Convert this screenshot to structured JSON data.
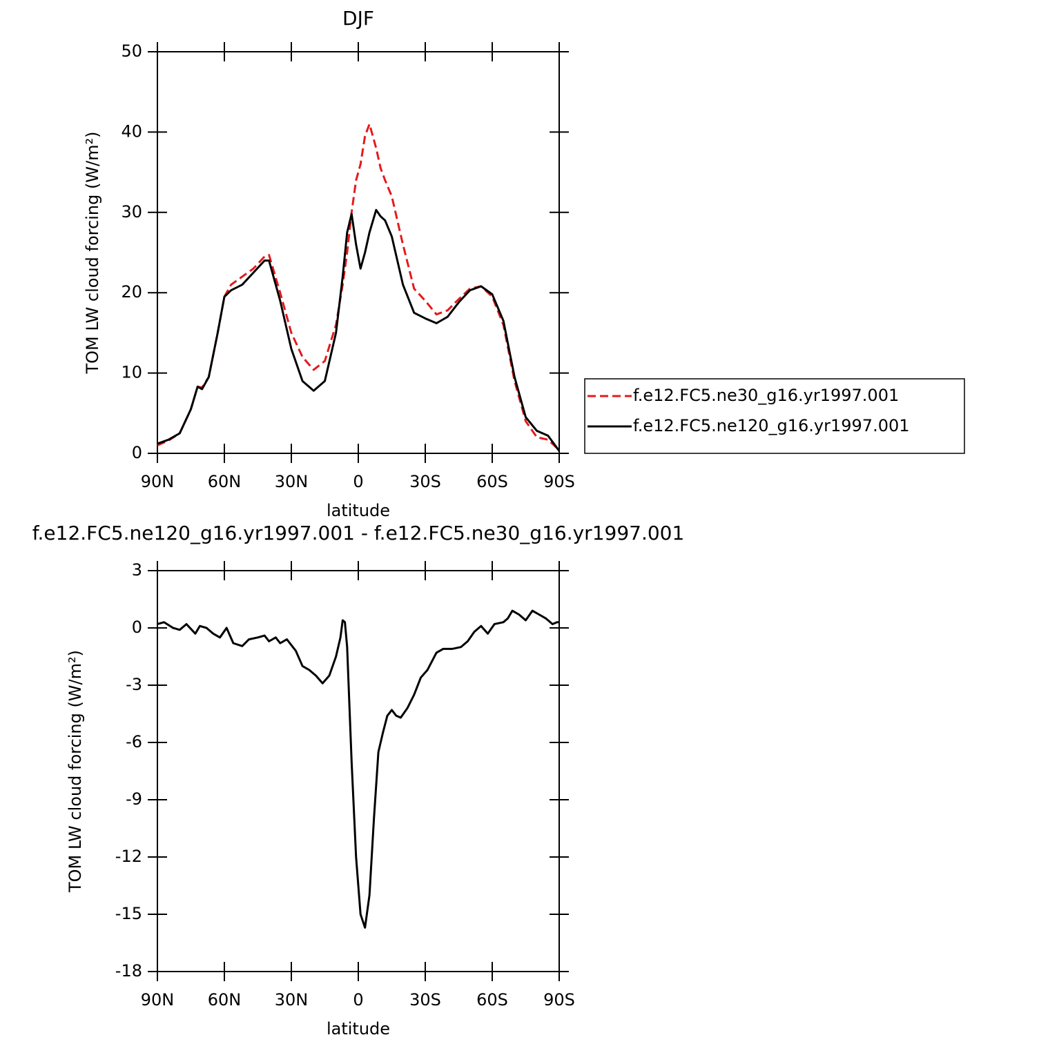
{
  "chart_data": [
    {
      "type": "line",
      "title": "DJF",
      "xlabel": "latitude",
      "ylabel": "TOM LW cloud forcing (W/m²)",
      "x": [
        90,
        85,
        80,
        75,
        72,
        70,
        67,
        63,
        60,
        57,
        52,
        47,
        42,
        40,
        35,
        30,
        25,
        20,
        15,
        10,
        7,
        5,
        3,
        1,
        -1,
        -3,
        -5,
        -8,
        -10,
        -12,
        -15,
        -20,
        -25,
        -30,
        -35,
        -40,
        -45,
        -50,
        -55,
        -60,
        -65,
        -70,
        -75,
        -80,
        -85,
        -90
      ],
      "series": [
        {
          "name": "f.e12.FC5.ne30_g16.yr1997.001",
          "color": "#e41a1c",
          "style": "dashed",
          "values": [
            1.0,
            1.6,
            2.5,
            5.5,
            8.3,
            8.2,
            9.5,
            15,
            19.5,
            21,
            22,
            23,
            24.5,
            24.7,
            20,
            15,
            12,
            10.4,
            11.5,
            16,
            21,
            25,
            30,
            34,
            36,
            39.5,
            41,
            38,
            35.5,
            34,
            32,
            26,
            20.5,
            19,
            17.3,
            17.8,
            19.2,
            20.5,
            20.8,
            19.5,
            16,
            9,
            4,
            2,
            1.7,
            0.4
          ]
        },
        {
          "name": "f.e12.FC5.ne120_g16.yr1997.001",
          "color": "#000000",
          "style": "solid",
          "values": [
            1.2,
            1.7,
            2.5,
            5.5,
            8.3,
            8.0,
            9.5,
            15,
            19.5,
            20.3,
            21,
            22.5,
            24,
            24,
            19,
            13,
            9,
            7.8,
            9,
            15,
            22,
            27.5,
            29.8,
            26,
            23,
            25,
            27.5,
            30.3,
            29.5,
            29,
            27,
            21,
            17.5,
            16.8,
            16.2,
            17,
            18.8,
            20.3,
            20.8,
            19.8,
            16.5,
            9.5,
            4.5,
            2.8,
            2.2,
            0.3
          ]
        }
      ],
      "xlim": [
        90,
        -90
      ],
      "xticks": [
        {
          "value": 90,
          "label": "90N"
        },
        {
          "value": 60,
          "label": "60N"
        },
        {
          "value": 30,
          "label": "30N"
        },
        0,
        {
          "value": -30,
          "label": "30S"
        },
        {
          "value": -60,
          "label": "60S"
        },
        {
          "value": -90,
          "label": "90S"
        }
      ],
      "ylim": [
        0,
        50
      ],
      "yticks": [
        0,
        10,
        20,
        30,
        40,
        50
      ],
      "legend": "right"
    },
    {
      "type": "line",
      "title": "f.e12.FC5.ne120_g16.yr1997.001 - f.e12.FC5.ne30_g16.yr1997.001",
      "xlabel": "latitude",
      "ylabel": "TOM LW cloud forcing (W/m²)",
      "x": [
        90,
        87,
        83,
        80,
        77,
        73,
        71,
        68,
        65,
        62,
        59,
        56,
        52,
        49,
        45,
        42,
        40,
        37,
        35,
        32,
        28,
        25,
        22,
        19,
        16,
        13,
        10,
        8,
        7,
        6,
        5,
        3,
        1,
        -1,
        -3,
        -5,
        -7,
        -9,
        -11,
        -13,
        -15,
        -17,
        -19,
        -22,
        -25,
        -28,
        -31,
        -35,
        -38,
        -42,
        -46,
        -49,
        -52,
        -55,
        -58,
        -61,
        -65,
        -67,
        -69,
        -72,
        -75,
        -78,
        -81,
        -84,
        -87,
        -89,
        -90
      ],
      "values": [
        0.2,
        0.3,
        0.0,
        -0.1,
        0.2,
        -0.3,
        0.1,
        0,
        -0.3,
        -0.5,
        0,
        -0.8,
        -0.95,
        -0.6,
        -0.5,
        -0.4,
        -0.7,
        -0.5,
        -0.8,
        -0.6,
        -1.2,
        -2.0,
        -2.2,
        -2.5,
        -2.9,
        -2.5,
        -1.5,
        -0.5,
        0.4,
        0.3,
        -1.0,
        -7,
        -12,
        -15,
        -15.7,
        -14,
        -10,
        -6.5,
        -5.5,
        -4.6,
        -4.3,
        -4.6,
        -4.7,
        -4.2,
        -3.5,
        -2.6,
        -2.2,
        -1.3,
        -1.1,
        -1.1,
        -1.0,
        -0.7,
        -0.2,
        0.1,
        -0.3,
        0.2,
        0.3,
        0.5,
        0.9,
        0.7,
        0.4,
        0.9,
        0.7,
        0.5,
        0.2,
        0.3,
        0.3
      ],
      "color": "#000000",
      "xlim": [
        90,
        -90
      ],
      "xticks": [
        {
          "value": 90,
          "label": "90N"
        },
        {
          "value": 60,
          "label": "60N"
        },
        {
          "value": 30,
          "label": "30N"
        },
        0,
        {
          "value": -30,
          "label": "30S"
        },
        {
          "value": -60,
          "label": "60S"
        },
        {
          "value": -90,
          "label": "90S"
        }
      ],
      "ylim": [
        -18,
        3
      ],
      "yticks": [
        -18,
        -15,
        -12,
        -9,
        -6,
        -3,
        0,
        3
      ]
    }
  ]
}
